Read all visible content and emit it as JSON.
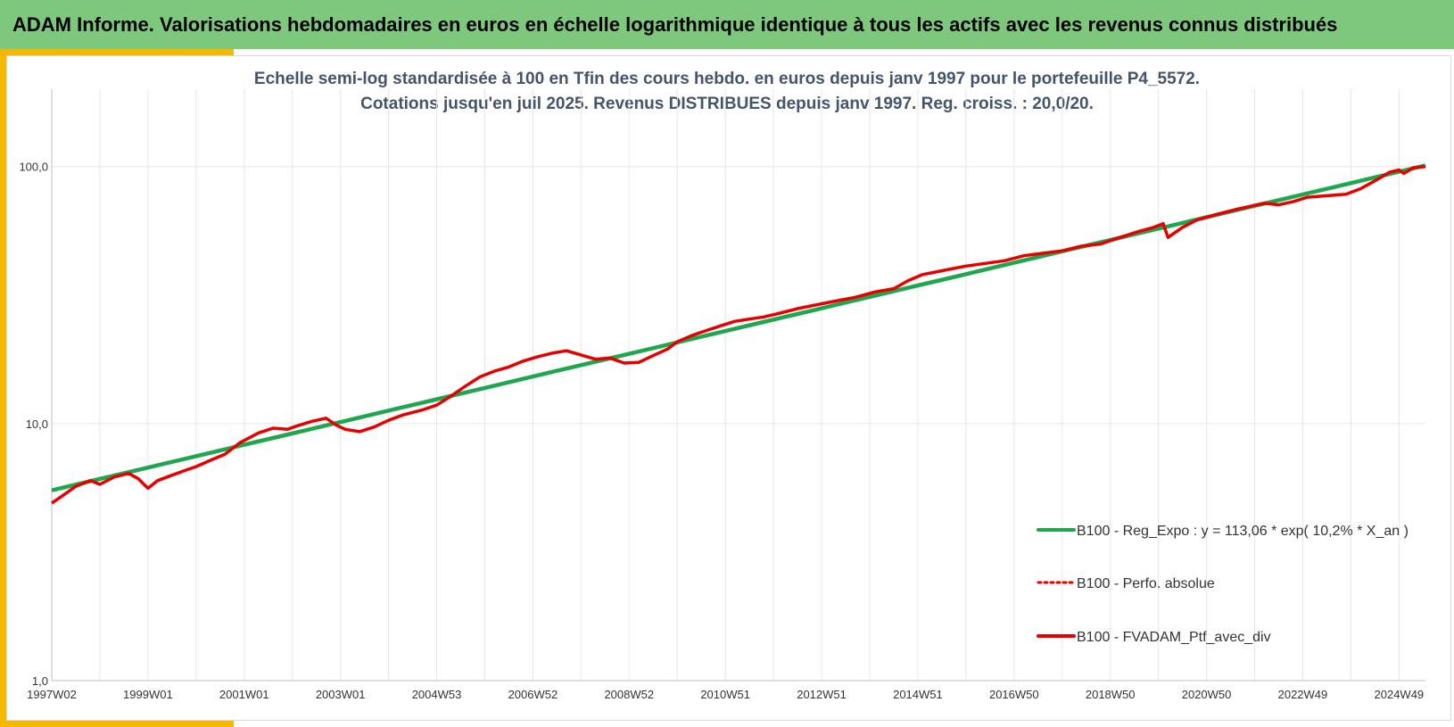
{
  "header": {
    "title": "ADAM Informe. Valorisations hebdomadaires en euros en échelle logarithmique identique à tous les actifs avec les revenus connus distribués"
  },
  "colors": {
    "banner": "#7dc87d",
    "accent": "#f5b800",
    "regression": "#1fa64f",
    "portfolio": "#e60000",
    "grid": "#e6e6e6"
  },
  "chart_data": {
    "type": "line",
    "title": "Echelle semi-log standardisée  à 100 en Tfin des cours hebdo.  en euros depuis janv 1997 pour  le portefeuille  P4_5572.",
    "subtitle": "Cotations  jusqu'en juil 2025. Revenus DISTRIBUES depuis janv 1997. Reg. croiss. : 20,0/20.",
    "y_scale": "log",
    "ylim": [
      1,
      200
    ],
    "y_ticks": [
      {
        "value": 1,
        "label": "1,0"
      },
      {
        "value": 10,
        "label": "10,0"
      },
      {
        "value": 100,
        "label": "100,0"
      }
    ],
    "xlim": [
      1997.0,
      2025.55
    ],
    "x_ticks": [
      {
        "value": 1997.0,
        "label": "1997W02"
      },
      {
        "value": 1999.0,
        "label": "1999W01"
      },
      {
        "value": 2001.0,
        "label": "2001W01"
      },
      {
        "value": 2003.0,
        "label": "2003W01"
      },
      {
        "value": 2005.0,
        "label": "2004W53"
      },
      {
        "value": 2007.0,
        "label": "2006W52"
      },
      {
        "value": 2009.0,
        "label": "2008W52"
      },
      {
        "value": 2011.0,
        "label": "2010W51"
      },
      {
        "value": 2013.0,
        "label": "2012W51"
      },
      {
        "value": 2015.0,
        "label": "2014W51"
      },
      {
        "value": 2017.0,
        "label": "2016W50"
      },
      {
        "value": 2019.0,
        "label": "2018W50"
      },
      {
        "value": 2021.0,
        "label": "2020W50"
      },
      {
        "value": 2023.0,
        "label": "2022W49"
      },
      {
        "value": 2025.0,
        "label": "2024W49"
      }
    ],
    "grid": true,
    "legend_position": "bottom-right",
    "series": [
      {
        "name": "B100 - Reg_Expo : y = 113,06 * exp( 10,2% *  X_an )",
        "color": "#1fa64f",
        "style": "solid",
        "x": [
          1997.0,
          2025.55
        ],
        "y": [
          5.5,
          101.0
        ]
      },
      {
        "name": "B100 - Perfo. absolue",
        "color": "#e60000",
        "style": "dotted",
        "x": [],
        "y": []
      },
      {
        "name": "B100 - FVADAM_Ptf_avec_div",
        "color": "#e60000",
        "style": "solid",
        "x": [
          1997.0,
          1997.2,
          1997.5,
          1997.8,
          1998.0,
          1998.3,
          1998.6,
          1998.8,
          1999.0,
          1999.2,
          1999.5,
          1999.8,
          2000.0,
          2000.3,
          2000.6,
          2000.9,
          2001.1,
          2001.3,
          2001.6,
          2001.9,
          2002.1,
          2002.4,
          2002.7,
          2002.9,
          2003.1,
          2003.4,
          2003.7,
          2004.0,
          2004.3,
          2004.7,
          2005.0,
          2005.3,
          2005.6,
          2005.9,
          2006.2,
          2006.5,
          2006.8,
          2007.1,
          2007.4,
          2007.7,
          2008.0,
          2008.3,
          2008.6,
          2008.9,
          2009.2,
          2009.5,
          2009.8,
          2010.0,
          2010.3,
          2010.6,
          2010.9,
          2011.2,
          2011.5,
          2011.8,
          2012.1,
          2012.5,
          2012.9,
          2013.3,
          2013.7,
          2014.1,
          2014.5,
          2014.8,
          2015.1,
          2015.4,
          2015.7,
          2016.0,
          2016.4,
          2016.8,
          2017.2,
          2017.6,
          2018.0,
          2018.4,
          2018.8,
          2019.2,
          2019.6,
          2019.9,
          2020.1,
          2020.2,
          2020.5,
          2020.8,
          2021.2,
          2021.6,
          2021.9,
          2022.2,
          2022.5,
          2022.8,
          2023.1,
          2023.5,
          2023.9,
          2024.2,
          2024.5,
          2024.8,
          2025.0,
          2025.1,
          2025.3,
          2025.55
        ],
        "y": [
          4.9,
          5.2,
          5.7,
          6.0,
          5.8,
          6.2,
          6.4,
          6.1,
          5.6,
          6.0,
          6.3,
          6.6,
          6.8,
          7.2,
          7.6,
          8.4,
          8.8,
          9.2,
          9.6,
          9.5,
          9.8,
          10.2,
          10.5,
          9.9,
          9.5,
          9.3,
          9.7,
          10.3,
          10.8,
          11.3,
          11.8,
          12.8,
          14.0,
          15.2,
          16.0,
          16.6,
          17.5,
          18.2,
          18.8,
          19.2,
          18.5,
          17.8,
          18.0,
          17.2,
          17.3,
          18.4,
          19.5,
          20.8,
          22.0,
          23.0,
          24.0,
          25.0,
          25.5,
          26.0,
          26.8,
          28.0,
          29.0,
          30.0,
          31.0,
          32.5,
          33.5,
          36.0,
          38.0,
          39.0,
          40.0,
          41.0,
          42.0,
          43.0,
          45.0,
          46.0,
          47.0,
          49.0,
          50.0,
          53.0,
          56.0,
          58.0,
          60.0,
          53.0,
          58.0,
          62.0,
          65.0,
          68.0,
          70.0,
          72.0,
          71.0,
          73.0,
          76.0,
          77.0,
          78.0,
          82.0,
          88.0,
          95.0,
          97.0,
          94.0,
          99.0,
          100.0
        ]
      }
    ]
  }
}
